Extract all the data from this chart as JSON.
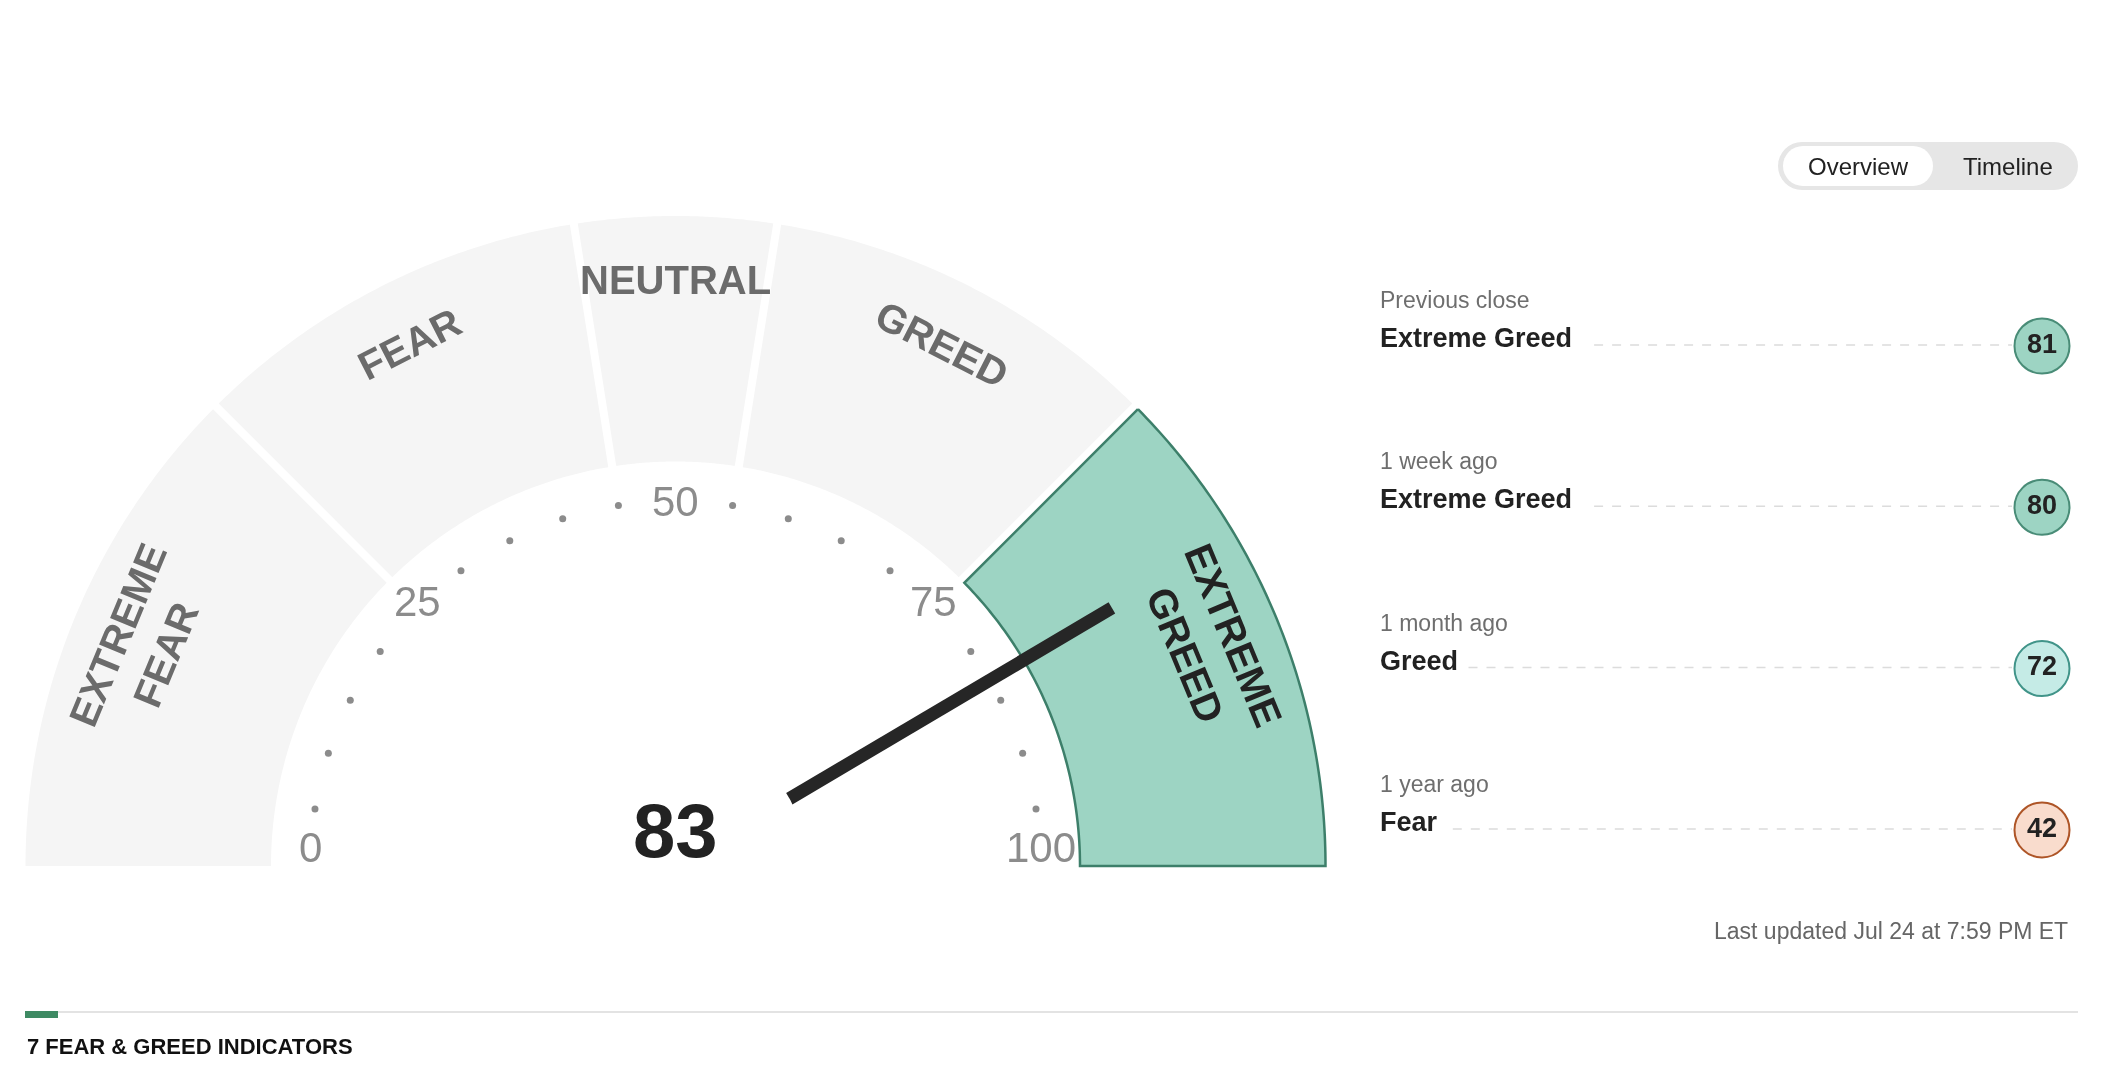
{
  "chart_data": [
    {
      "type": "donut",
      "categories": [
        "EXTREME FEAR",
        "FEAR",
        "NEUTRAL",
        "GREED",
        "EXTREME GREED"
      ],
      "values": [
        25,
        20,
        10,
        20,
        25
      ],
      "colors": [
        "#f5f5f5",
        "#f5f5f5",
        "#f5f5f5",
        "#f5f5f5",
        "#9dd4c3"
      ],
      "needle": "EXTREME GREED",
      "annotations": [
        "83",
        "0",
        "25",
        "50",
        "75",
        "100"
      ]
    },
    {
      "type": "other",
      "categories": [
        "Previous close",
        "1 week ago",
        "1 month ago",
        "1 year ago"
      ],
      "values": [
        81,
        80,
        72,
        42
      ],
      "colors": [
        "#9dd4c3",
        "#9dd4c3",
        "#c5ebe6",
        "#f9dccd"
      ],
      "data_labels": true,
      "annotations": [
        "Extreme Greed",
        "Extreme Greed",
        "Greed",
        "Fear",
        "Last updated Jul 24 at 7:59 PM ET"
      ]
    },
    {
      "type": "other",
      "categories": [
        "Overview",
        "Timeline"
      ]
    },
    {
      "type": "other",
      "title": "7 FEAR & GREED INDICATORS"
    }
  ]
}
